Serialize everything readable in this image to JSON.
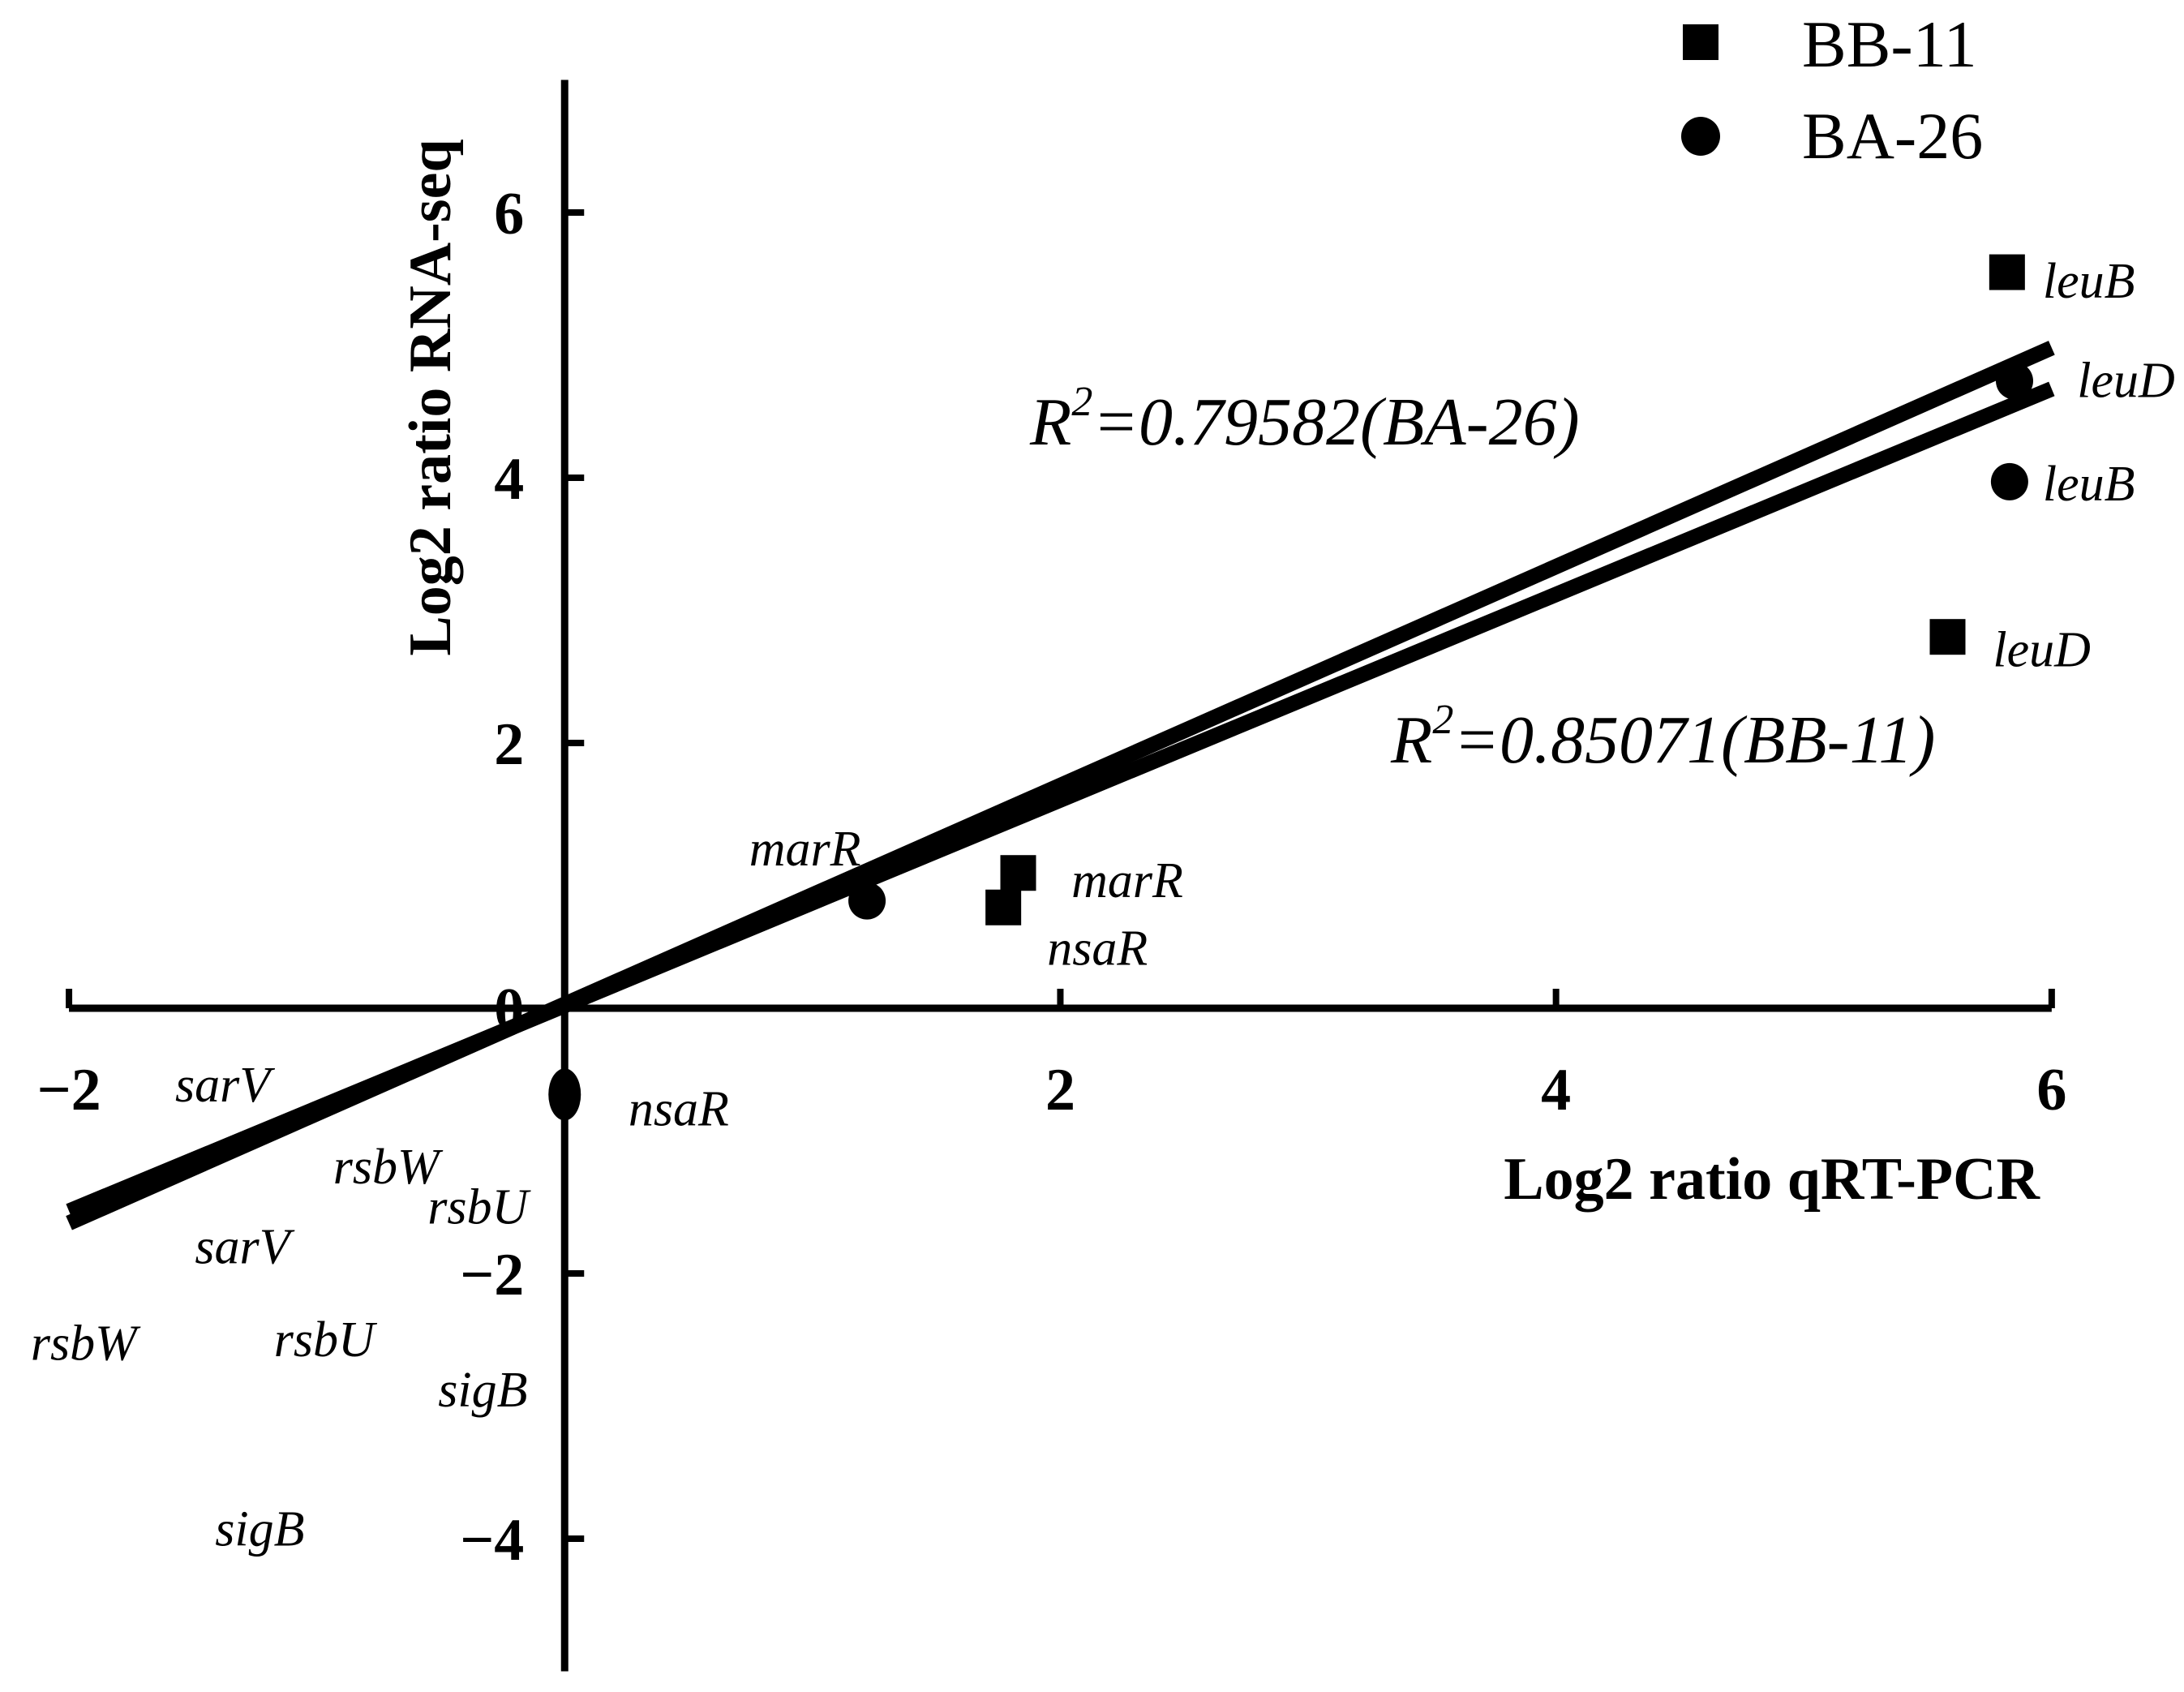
{
  "chart_data": {
    "type": "scatter",
    "xlabel": "Log2 ratio qRT-PCR",
    "ylabel": "Log2 ratio RNA-seq",
    "xlim": [
      -2,
      6
    ],
    "ylim": [
      -5,
      7
    ],
    "x_ticks": [
      {
        "value": -2,
        "label": "−2"
      },
      {
        "value": 0,
        "label": ""
      },
      {
        "value": 2,
        "label": "2"
      },
      {
        "value": 4,
        "label": "4"
      },
      {
        "value": 6,
        "label": "6"
      }
    ],
    "y_ticks": [
      {
        "value": -4,
        "label": "−4"
      },
      {
        "value": -2,
        "label": "−2"
      },
      {
        "value": 0,
        "label": "0"
      },
      {
        "value": 2,
        "label": "2"
      },
      {
        "value": 4,
        "label": "4"
      },
      {
        "value": 6,
        "label": "6"
      }
    ],
    "grid": false,
    "legend_position": "top-right",
    "series": [
      {
        "name": "BB-11",
        "marker": "square",
        "points": [
          {
            "gene": "leuB",
            "x": 5.82,
            "y": 5.55
          },
          {
            "gene": "leuD",
            "x": 5.58,
            "y": 2.8
          },
          {
            "gene": "marR",
            "x": 1.83,
            "y": 1.02
          },
          {
            "gene": "nsaR",
            "x": 1.77,
            "y": 0.76
          }
        ]
      },
      {
        "name": "BA-26",
        "marker": "circle",
        "points": [
          {
            "gene": "leuD",
            "x": 5.85,
            "y": 4.73
          },
          {
            "gene": "leuB",
            "x": 5.83,
            "y": 3.97
          },
          {
            "gene": "marR",
            "x": 1.22,
            "y": 0.81
          },
          {
            "gene": "nsaR",
            "x": 0.0,
            "y": -0.65
          }
        ]
      }
    ],
    "fit_lines": [
      {
        "series": "BA-26",
        "x_range": [
          -2,
          6
        ],
        "y_range": [
          -1.62,
          4.98
        ]
      },
      {
        "series": "BB-11",
        "x_range": [
          -2,
          6
        ],
        "y_range": [
          -1.53,
          4.67
        ]
      }
    ],
    "annotations": {
      "r2_ba26": {
        "r": "R",
        "sup": "2",
        "text": "=0.79582(BA-26)"
      },
      "r2_bb11": {
        "r": "R",
        "sup": "2",
        "text": "=0.85071(BB-11)"
      }
    },
    "gene_labels": [
      {
        "text": "leuB",
        "x": 6.15,
        "y": 5.48
      },
      {
        "text": "leuD",
        "x": 6.3,
        "y": 4.73
      },
      {
        "text": "leuB",
        "x": 6.15,
        "y": 3.95
      },
      {
        "text": "leuD",
        "x": 5.96,
        "y": 2.7
      },
      {
        "text": "marR",
        "x": 0.97,
        "y": 1.2
      },
      {
        "text": "marR",
        "x": 2.27,
        "y": 0.96
      },
      {
        "text": "nsaR",
        "x": 2.15,
        "y": 0.45
      },
      {
        "text": "nsaR",
        "x": 0.46,
        "y": -0.76
      },
      {
        "text": "sarV",
        "x": -1.38,
        "y": -0.58
      },
      {
        "text": "rsbW",
        "x": -0.72,
        "y": -1.2
      },
      {
        "text": "rsbU",
        "x": -0.35,
        "y": -1.5
      },
      {
        "text": "sarV",
        "x": -1.3,
        "y": -1.8
      },
      {
        "text": "rsbW",
        "x": -1.94,
        "y": -2.53
      },
      {
        "text": "rsbU",
        "x": -0.97,
        "y": -2.5
      },
      {
        "text": "sigB",
        "x": -0.33,
        "y": -2.88
      },
      {
        "text": "sigB",
        "x": -1.23,
        "y": -3.93
      }
    ]
  }
}
